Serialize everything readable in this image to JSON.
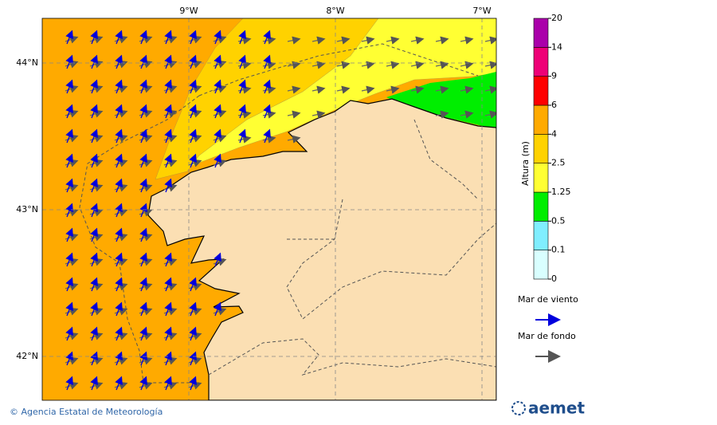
{
  "map": {
    "lon_labels": [
      "9°W",
      "8°W",
      "7°W"
    ],
    "lat_labels": [
      "44°N",
      "43°N",
      "42°N"
    ],
    "colorbar": {
      "label": "Altura (m)",
      "ticks": [
        0,
        0.1,
        0.5,
        1.25,
        2.5,
        4,
        6,
        9,
        14,
        20
      ],
      "colors": [
        "#d9ffff",
        "#80eeff",
        "#00ee00",
        "#ffff33",
        "#ffd200",
        "#ffaa00",
        "#ff0000",
        "#ee0077",
        "#aa00aa"
      ]
    },
    "legend": [
      {
        "name": "Mar de viento",
        "color": "#0000dd"
      },
      {
        "name": "Mar de fondo",
        "color": "#555555"
      }
    ],
    "footer": "© Agencia Estatal de Meteorología",
    "logo": "aemet"
  }
}
